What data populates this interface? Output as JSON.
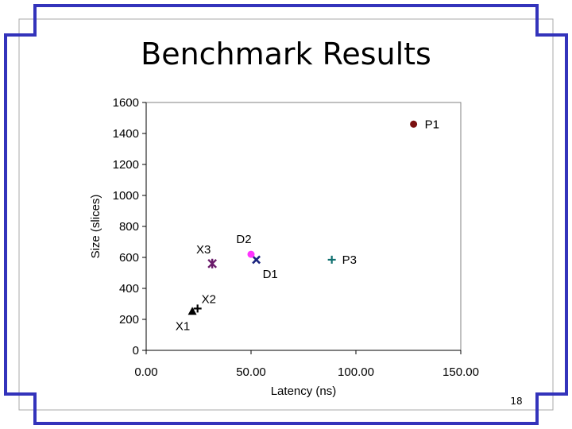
{
  "slide": {
    "title": "Benchmark Results",
    "page_number": "18",
    "frame_color": "#3333bb",
    "inner_frame_color": "#aaaaaa"
  },
  "chart_data": {
    "type": "scatter",
    "title": "",
    "xlabel": "Latency (ns)",
    "ylabel": "Size (slices)",
    "xlim": [
      0,
      150
    ],
    "ylim": [
      0,
      1600
    ],
    "x_ticks": [
      0,
      50,
      100,
      150
    ],
    "x_tick_labels": [
      "0.00",
      "50.00",
      "100.00",
      "150.00"
    ],
    "y_ticks": [
      0,
      200,
      400,
      600,
      800,
      1000,
      1200,
      1400,
      1600
    ],
    "y_tick_labels": [
      "0",
      "200",
      "400",
      "600",
      "800",
      "1000",
      "1200",
      "1400",
      "1600"
    ],
    "grid": false,
    "legend": "none",
    "points": [
      {
        "label": "P1",
        "x": 127.5,
        "y": 1460,
        "marker": "circle",
        "color": "#7a1010"
      },
      {
        "label": "P3",
        "x": 88.5,
        "y": 585,
        "marker": "plus",
        "color": "#107070"
      },
      {
        "label": "D1",
        "x": 52.5,
        "y": 585,
        "marker": "x",
        "color": "#1a237e"
      },
      {
        "label": "D2",
        "x": 50,
        "y": 620,
        "marker": "circle",
        "color": "#ff33ff"
      },
      {
        "label": "X3",
        "x": 31.5,
        "y": 560,
        "marker": "star",
        "color": "#6a1b6a"
      },
      {
        "label": "X2",
        "x": 24.5,
        "y": 270,
        "marker": "plus",
        "color": "#000000"
      },
      {
        "label": "X1",
        "x": 22,
        "y": 250,
        "marker": "triangle",
        "color": "#000000"
      }
    ]
  }
}
